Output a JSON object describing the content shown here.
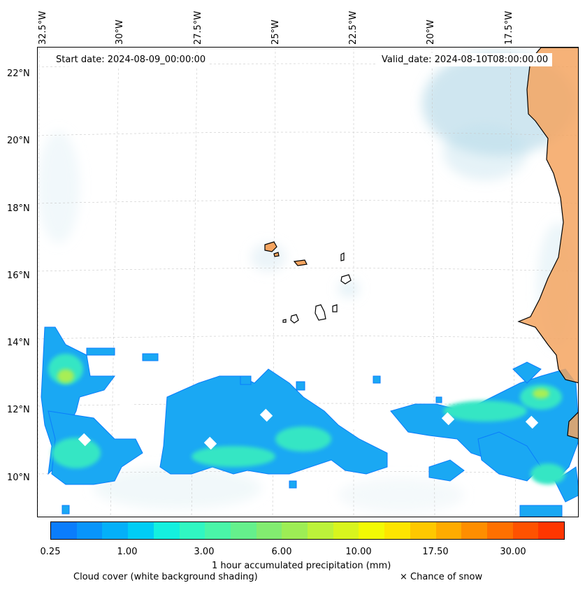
{
  "map": {
    "lon_labels": [
      "32.5°W",
      "30°W",
      "27.5°W",
      "25°W",
      "22.5°W",
      "20°W",
      "17.5°W"
    ],
    "lat_labels": [
      "22°N",
      "20°N",
      "18°N",
      "16°N",
      "14°N",
      "12°N",
      "10°N"
    ],
    "start_date": "Start date: 2024-08-09_00:00:00",
    "valid_date": "Valid_date: 2024-08-10T08:00:00.00",
    "land_color": "#f4a460",
    "coast_color": "#000000"
  },
  "colorbar": {
    "tick_labels": [
      "0.25",
      "1.00",
      "3.00",
      "6.00",
      "10.00",
      "17.50",
      "30.00"
    ],
    "colors": [
      "#0a7dfc",
      "#0895fb",
      "#04b0f9",
      "#00cdf5",
      "#14f0df",
      "#30f7c2",
      "#4af5a8",
      "#65f08c",
      "#82ec70",
      "#9ded55",
      "#bcf23a",
      "#d8f51e",
      "#f2fa04",
      "#fde500",
      "#fec800",
      "#feab00",
      "#fe8e00",
      "#fe7000",
      "#fe5200",
      "#fe3600"
    ],
    "label": "1 hour accumulated precipitation (mm)"
  },
  "legend": {
    "cloud_cover": "Cloud cover (white background shading)",
    "snow": "× Chance of snow"
  }
}
